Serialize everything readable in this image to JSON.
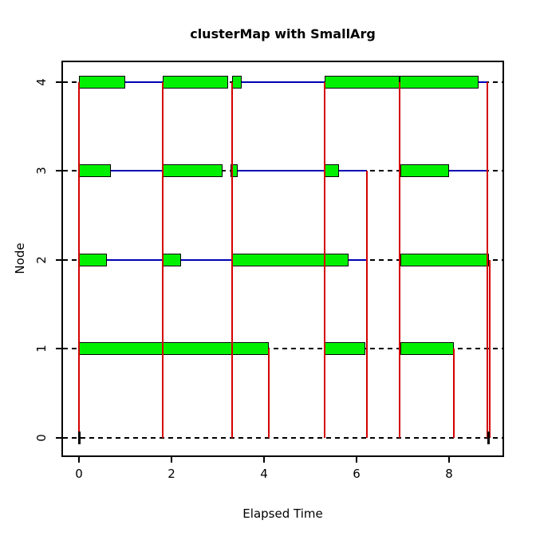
{
  "title": "clusterMap with SmallArg",
  "chart_data": {
    "type": "gantt",
    "title": "clusterMap with SmallArg",
    "xlabel": "Elapsed Time",
    "ylabel": "Node",
    "xlim": [
      -0.379,
      9.19
    ],
    "ylim": [
      -0.215,
      4.24
    ],
    "x_ticks": [
      0,
      2,
      4,
      6,
      8
    ],
    "y_ticks": [
      0,
      1,
      2,
      3,
      4
    ],
    "grid": false,
    "legend": "none",
    "colors": {
      "task_fill": "#00f000",
      "task_border": "#000000",
      "active_line": "#0000b3",
      "idle_line": "#000000",
      "comm_line": "#d40000",
      "master_mark": "#000000"
    },
    "tasks": [
      {
        "node": 4,
        "segments": [
          [
            0.0,
            1.0
          ],
          [
            1.81,
            3.22
          ],
          [
            3.31,
            3.52
          ],
          [
            5.31,
            6.93
          ],
          [
            6.93,
            8.64
          ]
        ]
      },
      {
        "node": 3,
        "segments": [
          [
            0.0,
            0.69
          ],
          [
            1.81,
            3.1
          ],
          [
            3.28,
            3.43
          ],
          [
            5.31,
            5.62
          ],
          [
            6.95,
            8.0
          ]
        ]
      },
      {
        "node": 2,
        "segments": [
          [
            0.0,
            0.6
          ],
          [
            1.81,
            2.21
          ],
          [
            3.31,
            5.83
          ],
          [
            6.95,
            8.86
          ]
        ]
      },
      {
        "node": 1,
        "segments": [
          [
            0.0,
            4.1
          ],
          [
            5.31,
            6.19
          ],
          [
            6.95,
            8.1
          ]
        ]
      }
    ],
    "active_segments": [
      {
        "node": 4,
        "spans": [
          [
            1.0,
            1.81
          ],
          [
            3.52,
            5.31
          ],
          [
            8.64,
            8.83
          ]
        ]
      },
      {
        "node": 3,
        "spans": [
          [
            0.69,
            1.81
          ],
          [
            3.43,
            5.31
          ],
          [
            5.62,
            6.22
          ],
          [
            8.0,
            8.83
          ]
        ]
      },
      {
        "node": 2,
        "spans": [
          [
            0.6,
            1.81
          ],
          [
            2.21,
            3.31
          ],
          [
            5.83,
            6.22
          ]
        ]
      },
      {
        "node": 1,
        "spans": []
      }
    ],
    "comm_lines": [
      {
        "t": 0.0,
        "from_node": 4,
        "to_node": 0
      },
      {
        "t": 1.81,
        "from_node": 4,
        "to_node": 0
      },
      {
        "t": 3.31,
        "from_node": 4,
        "to_node": 0
      },
      {
        "t": 5.31,
        "from_node": 4,
        "to_node": 0
      },
      {
        "t": 6.93,
        "from_node": 4,
        "to_node": 0
      },
      {
        "t": 8.83,
        "from_node": 4,
        "to_node": 0
      },
      {
        "t": 4.1,
        "from_node": 1,
        "to_node": 0
      },
      {
        "t": 6.22,
        "from_node": 3,
        "to_node": 0
      },
      {
        "t": 8.1,
        "from_node": 1,
        "to_node": 0
      },
      {
        "t": 8.88,
        "from_node": 2,
        "to_node": 0
      }
    ],
    "master_marks": [
      0.0,
      8.85
    ]
  }
}
